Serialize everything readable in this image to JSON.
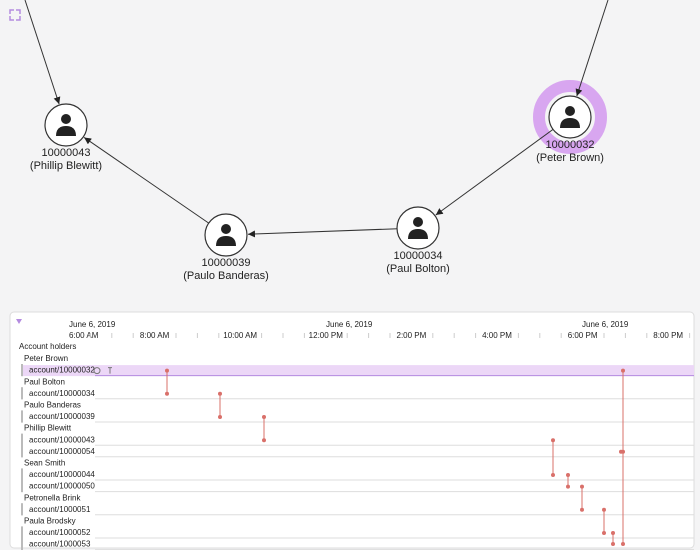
{
  "nodes": [
    {
      "id": "10000043",
      "name": "(Phillip Blewitt)"
    },
    {
      "id": "10000032",
      "name": "(Peter Brown)"
    },
    {
      "id": "10000039",
      "name": "(Paulo Banderas)"
    },
    {
      "id": "10000034",
      "name": "(Paul Bolton)"
    }
  ],
  "timeline": {
    "dates": [
      "June 6, 2019",
      "June 6, 2019",
      "June 6, 2019"
    ],
    "times": [
      "6:00 AM",
      "8:00 AM",
      "10:00 AM",
      "12:00 PM",
      "2:00 PM",
      "4:00 PM",
      "6:00 PM",
      "8:00 PM"
    ],
    "header": "Account holders",
    "groups": [
      {
        "holder": "Peter Brown",
        "accounts": [
          "account/10000032"
        ]
      },
      {
        "holder": "Paul Bolton",
        "accounts": [
          "account/10000034"
        ]
      },
      {
        "holder": "Paulo Banderas",
        "accounts": [
          "account/10000039"
        ]
      },
      {
        "holder": "Phillip Blewitt",
        "accounts": [
          "account/10000043",
          "account/10000054"
        ]
      },
      {
        "holder": "Sean Smith",
        "accounts": [
          "account/10000044",
          "account/10000050"
        ]
      },
      {
        "holder": "Petronella Brink",
        "accounts": [
          "account/1000051"
        ]
      },
      {
        "holder": "Paula Brodsky",
        "accounts": [
          "account/1000052",
          "account/1000053"
        ]
      }
    ]
  }
}
